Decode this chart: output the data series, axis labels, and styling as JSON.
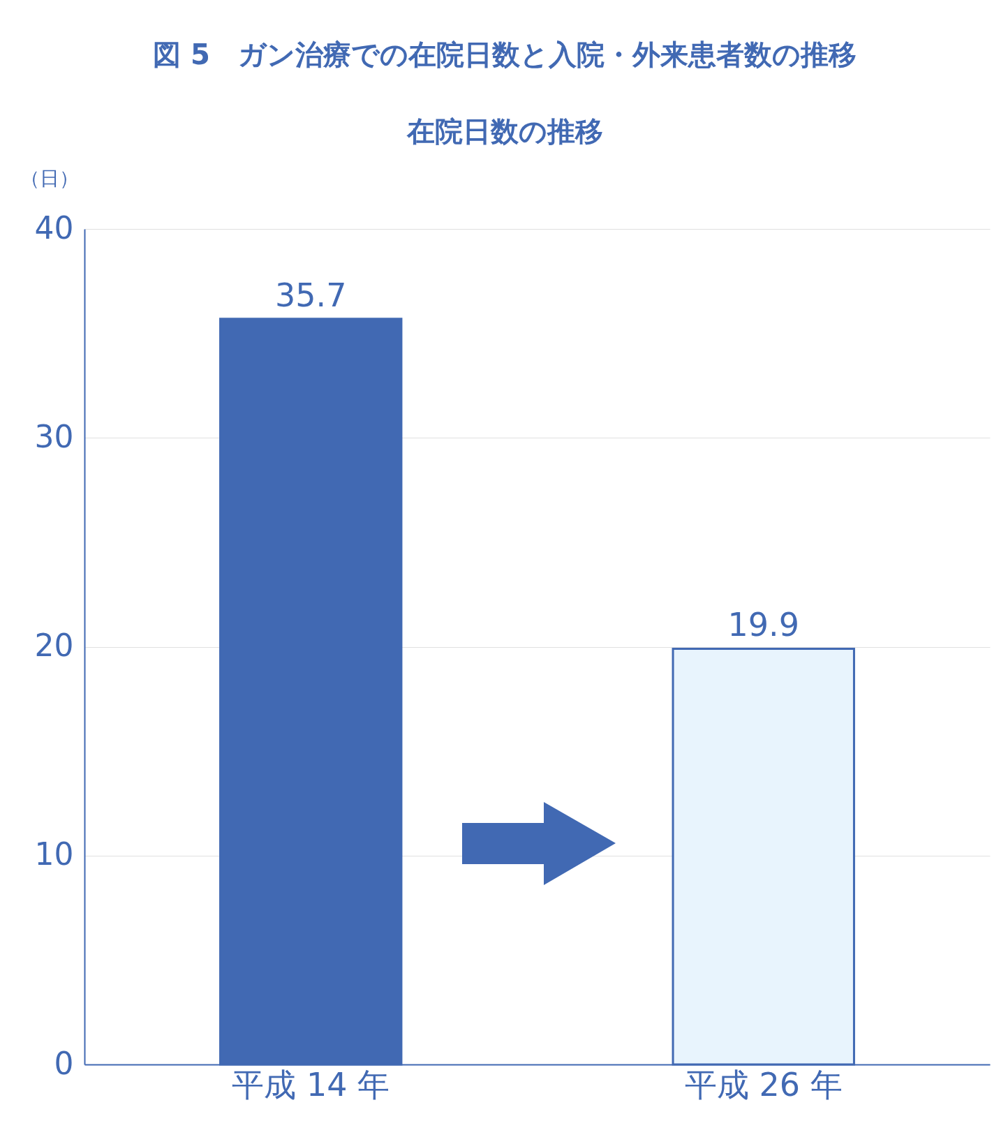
{
  "chart_data": {
    "type": "bar",
    "title": "図 5　ガン治療での在院日数と入院・外来患者数の推移",
    "subtitle": "在院日数の推移",
    "ylabel": "（日）",
    "categories": [
      "平成 14 年",
      "平成 26 年"
    ],
    "values": [
      35.7,
      19.9
    ],
    "colors": [
      "#4169b3",
      "#e8f4fd"
    ],
    "ylim": [
      0,
      40
    ],
    "yticks": [
      0,
      10,
      20,
      30,
      40
    ],
    "grid": "y",
    "data_labels": true
  }
}
